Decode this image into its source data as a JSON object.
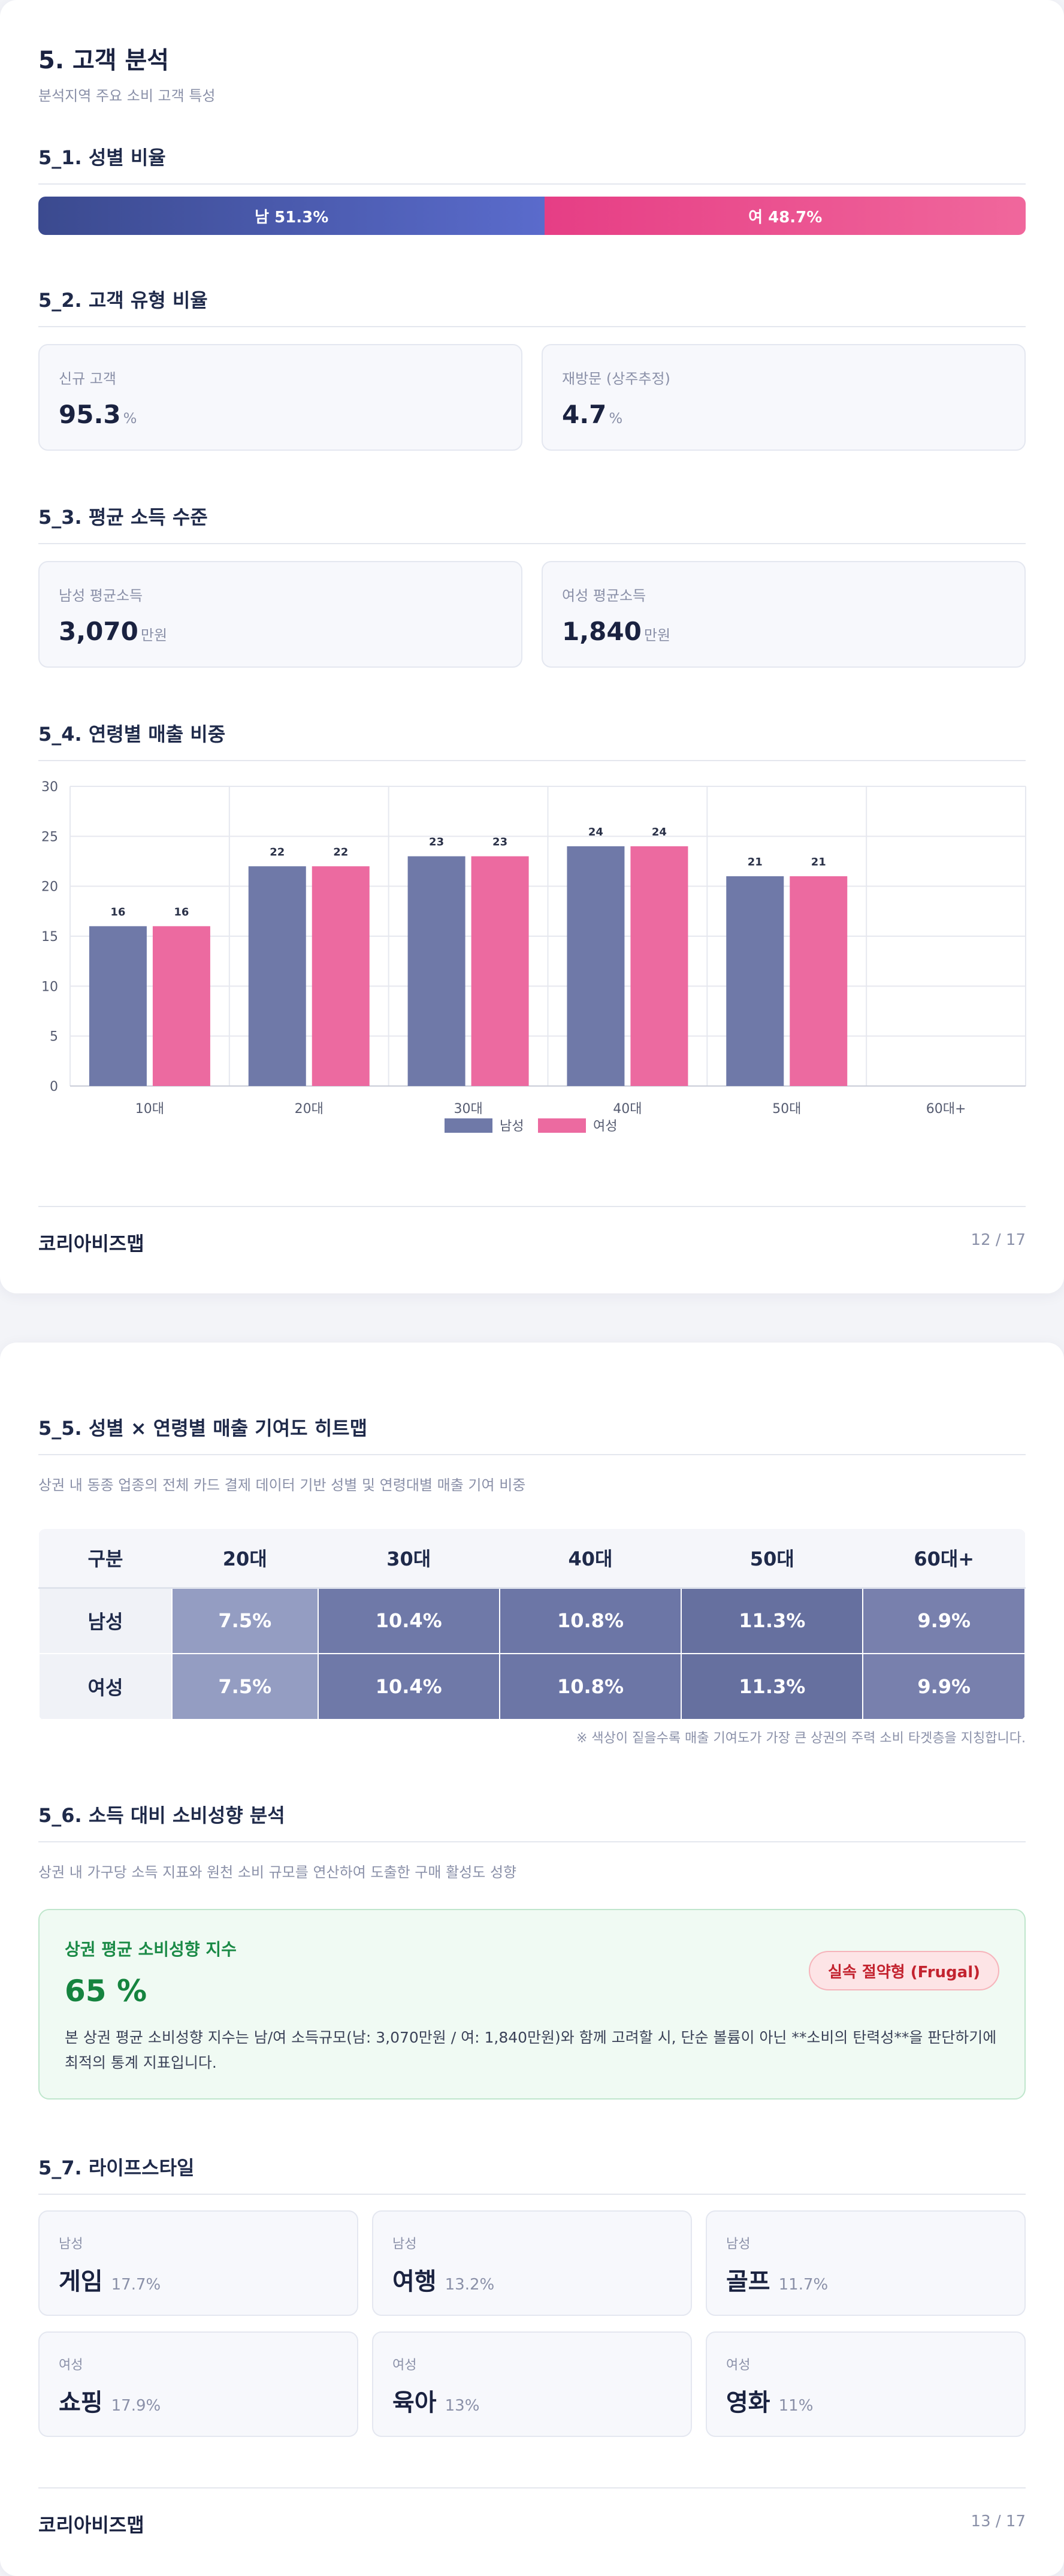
{
  "page1": {
    "title": "5. 고객 분석",
    "subtitle": "분석지역 주요 소비 고객 특성",
    "gender": {
      "title": "5_1. 성별 비율",
      "male_label": "남 51.3%",
      "female_label": "여 48.7%",
      "male_pct": 51.3,
      "female_pct": 48.7,
      "male_color": "#4a5aae",
      "female_color": "#ea4d8e"
    },
    "customer_type": {
      "title": "5_2. 고객 유형 비율",
      "new_label": "신규 고객",
      "new_value": "95.3",
      "new_unit": "%",
      "return_label": "재방문 (상주추정)",
      "return_value": "4.7",
      "return_unit": "%"
    },
    "income": {
      "title": "5_3. 평균 소득 수준",
      "male_label": "남성 평균소득",
      "male_value": "3,070",
      "male_unit": "만원",
      "female_label": "여성 평균소득",
      "female_value": "1,840",
      "female_unit": "만원"
    },
    "age_sales": {
      "title": "5_4. 연령별 매출 비중"
    },
    "footer": {
      "brand": "코리아비즈맵",
      "page": "12 / 17"
    }
  },
  "chart_data": {
    "type": "bar",
    "categories": [
      "10대",
      "20대",
      "30대",
      "40대",
      "50대",
      "60대+"
    ],
    "series": [
      {
        "name": "남성",
        "values": [
          16,
          22,
          23,
          24,
          21,
          0
        ],
        "color": "#6f79a8"
      },
      {
        "name": "여성",
        "values": [
          16,
          22,
          23,
          24,
          21,
          0
        ],
        "color": "#ec6aa0"
      }
    ],
    "data_labels": [
      [
        "16",
        "22",
        "23",
        "24",
        "21",
        ""
      ],
      [
        "16",
        "22",
        "23",
        "24",
        "21",
        ""
      ]
    ],
    "ylim": [
      0,
      30
    ],
    "yticks": [
      "0",
      "5",
      "10",
      "15",
      "20",
      "25",
      "30"
    ],
    "grid": true,
    "legend_position": "bottom-center"
  },
  "page2": {
    "heatmap": {
      "title": "5_5. 성별 × 연령별 매출 기여도 히트맵",
      "desc": "상권 내 동종 업종의 전체 카드 결제 데이터 기반 성별 및 연령대별 매출 기여 비중",
      "corner": "구분",
      "columns": [
        "20대",
        "30대",
        "40대",
        "50대",
        "60대+"
      ],
      "rows": [
        {
          "label": "남성",
          "values": [
            "7.5%",
            "10.4%",
            "10.8%",
            "11.3%",
            "9.9%"
          ],
          "colors": [
            "#949dc2",
            "#6f79a8",
            "#6c76a6",
            "#66709f",
            "#7880ad"
          ]
        },
        {
          "label": "여성",
          "values": [
            "7.5%",
            "10.4%",
            "10.8%",
            "11.3%",
            "9.9%"
          ],
          "colors": [
            "#949dc2",
            "#6f79a8",
            "#6c76a6",
            "#66709f",
            "#7880ad"
          ]
        }
      ],
      "note": "※ 색상이 짙을수록 매출 기여도가 가장 큰 상권의 주력 소비 타겟층을 지칭합니다."
    },
    "propensity": {
      "title": "5_6. 소득 대비 소비성향 분석",
      "desc": "상권 내 가구당 소득 지표와 원천 소비 규모를 연산하여 도출한 구매 활성도 성향",
      "box_title": "상권 평균 소비성향 지수",
      "value": "65 %",
      "badge": "실속 절약형 (Frugal)",
      "description": "본 상권 평균 소비성향 지수는 남/여 소득규모(남: 3,070만원 / 여: 1,840만원)와 함께 고려할 시, 단순 볼륨이 아닌 **소비의 탄력성**을 판단하기에 최적의 통계 지표입니다."
    },
    "lifestyle": {
      "title": "5_7. 라이프스타일",
      "items": [
        {
          "gender": "남성",
          "name": "게임",
          "pct": "17.7%"
        },
        {
          "gender": "남성",
          "name": "여행",
          "pct": "13.2%"
        },
        {
          "gender": "남성",
          "name": "골프",
          "pct": "11.7%"
        },
        {
          "gender": "여성",
          "name": "쇼핑",
          "pct": "17.9%"
        },
        {
          "gender": "여성",
          "name": "육아",
          "pct": "13%"
        },
        {
          "gender": "여성",
          "name": "영화",
          "pct": "11%"
        }
      ]
    },
    "footer": {
      "brand": "코리아비즈맵",
      "page": "13 / 17"
    }
  }
}
